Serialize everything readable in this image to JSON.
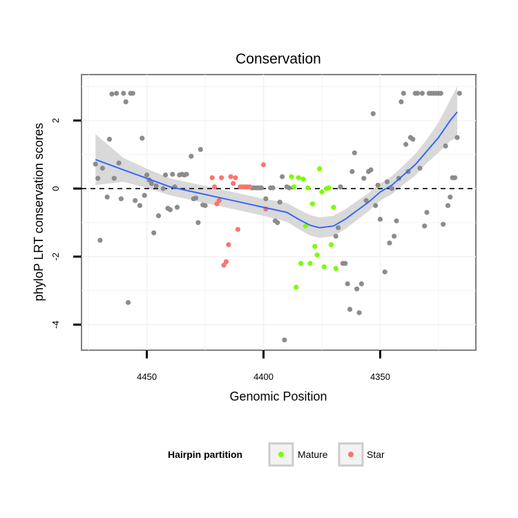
{
  "chart_data": {
    "type": "scatter",
    "title": "Conservation",
    "xlabel": "Genomic Position",
    "ylabel": "phyloP LRT conservation scores",
    "xlim": [
      4478,
      4309
    ],
    "ylim": [
      -4.75,
      3.35
    ],
    "x_reversed": true,
    "x_ticks": [
      4450,
      4400,
      4350
    ],
    "y_ticks": [
      -4,
      -2,
      0,
      2
    ],
    "grid": true,
    "reference_line": {
      "y": 0,
      "style": "dashed"
    },
    "legend": {
      "title": "Hairpin partition",
      "placement": "bottom",
      "entries": [
        {
          "label": "Mature",
          "color": "#7cfc00"
        },
        {
          "label": "Star",
          "color": "#f8766d"
        }
      ]
    },
    "colors": {
      "other": "#8c8c8c",
      "mature": "#7cfc00",
      "star": "#f8766d",
      "smooth": "#3366ff",
      "ribbon": "#cccccc"
    },
    "series": [
      {
        "category": "Other",
        "points": [
          [
            4472,
            0.72
          ],
          [
            4471,
            0.3
          ],
          [
            4470,
            -1.52
          ],
          [
            4469,
            0.6
          ],
          [
            4467,
            -0.25
          ],
          [
            4466,
            1.45
          ],
          [
            4465,
            2.78
          ],
          [
            4464,
            0.3
          ],
          [
            4463,
            2.8
          ],
          [
            4462,
            0.75
          ],
          [
            4461,
            -0.3
          ],
          [
            4460,
            2.8
          ],
          [
            4459,
            2.55
          ],
          [
            4458,
            -3.35
          ],
          [
            4457,
            2.8
          ],
          [
            4456,
            2.8
          ],
          [
            4455,
            -0.35
          ],
          [
            4453,
            -0.5
          ],
          [
            4452,
            1.48
          ],
          [
            4451,
            -0.2
          ],
          [
            4450,
            0.4
          ],
          [
            4449,
            0.25
          ],
          [
            4448,
            0.15
          ],
          [
            4447,
            -1.3
          ],
          [
            4446,
            0.08
          ],
          [
            4445,
            -0.8
          ],
          [
            4443,
            0.0
          ],
          [
            4442,
            0.4
          ],
          [
            4441,
            -0.58
          ],
          [
            4440,
            -0.62
          ],
          [
            4439,
            0.42
          ],
          [
            4438,
            0.05
          ],
          [
            4437,
            -0.55
          ],
          [
            4436,
            0.4
          ],
          [
            4435,
            0.42
          ],
          [
            4434,
            0.4
          ],
          [
            4433,
            0.42
          ],
          [
            4431,
            0.95
          ],
          [
            4430,
            -0.3
          ],
          [
            4429,
            -0.28
          ],
          [
            4428,
            -1.0
          ],
          [
            4427,
            1.15
          ],
          [
            4426,
            -0.48
          ],
          [
            4425,
            -0.5
          ],
          [
            4405,
            0.02
          ],
          [
            4404,
            0.02
          ],
          [
            4403,
            0.02
          ],
          [
            4402,
            0.02
          ],
          [
            4401,
            0.02
          ],
          [
            4399,
            -0.3
          ],
          [
            4397,
            0.02
          ],
          [
            4396,
            0.02
          ],
          [
            4395,
            -0.95
          ],
          [
            4394,
            -1.0
          ],
          [
            4393,
            -0.4
          ],
          [
            4392,
            0.35
          ],
          [
            4391,
            -4.45
          ],
          [
            4390,
            0.05
          ],
          [
            4389,
            0.02
          ],
          [
            4369,
            -1.4
          ],
          [
            4368,
            -1.15
          ],
          [
            4367,
            0.05
          ],
          [
            4366,
            -2.2
          ],
          [
            4365,
            -2.2
          ],
          [
            4364,
            -2.8
          ],
          [
            4363,
            -3.55
          ],
          [
            4362,
            0.5
          ],
          [
            4361,
            1.05
          ],
          [
            4360,
            -2.95
          ],
          [
            4359,
            -3.65
          ],
          [
            4358,
            -2.8
          ],
          [
            4357,
            0.3
          ],
          [
            4356,
            -0.35
          ],
          [
            4355,
            0.5
          ],
          [
            4354,
            0.55
          ],
          [
            4353,
            2.2
          ],
          [
            4352,
            -0.5
          ],
          [
            4351,
            0.1
          ],
          [
            4350,
            -0.9
          ],
          [
            4348,
            -2.45
          ],
          [
            4347,
            0.2
          ],
          [
            4346,
            -1.6
          ],
          [
            4345,
            0.0
          ],
          [
            4344,
            -1.4
          ],
          [
            4343,
            -0.95
          ],
          [
            4342,
            0.3
          ],
          [
            4341,
            2.55
          ],
          [
            4340,
            2.8
          ],
          [
            4339,
            1.3
          ],
          [
            4338,
            0.5
          ],
          [
            4337,
            1.5
          ],
          [
            4336,
            1.45
          ],
          [
            4335,
            2.8
          ],
          [
            4334,
            2.8
          ],
          [
            4333,
            0.6
          ],
          [
            4332,
            2.8
          ],
          [
            4331,
            -1.1
          ],
          [
            4330,
            -0.7
          ],
          [
            4329,
            2.8
          ],
          [
            4328,
            2.8
          ],
          [
            4327,
            2.8
          ],
          [
            4326,
            2.8
          ],
          [
            4325,
            2.8
          ],
          [
            4324,
            2.8
          ],
          [
            4323,
            -1.05
          ],
          [
            4322,
            1.25
          ],
          [
            4321,
            -0.5
          ],
          [
            4320,
            -0.25
          ],
          [
            4319,
            0.32
          ],
          [
            4318,
            0.32
          ],
          [
            4317,
            1.5
          ],
          [
            4316,
            2.8
          ]
        ]
      },
      {
        "category": "Star",
        "points": [
          [
            4422,
            0.32
          ],
          [
            4421,
            0.05
          ],
          [
            4420,
            -0.45
          ],
          [
            4419,
            -0.35
          ],
          [
            4418,
            0.32
          ],
          [
            4417,
            -2.25
          ],
          [
            4416,
            -2.15
          ],
          [
            4415,
            -1.65
          ],
          [
            4414,
            0.35
          ],
          [
            4413,
            0.15
          ],
          [
            4412,
            0.32
          ],
          [
            4411,
            -1.2
          ],
          [
            4410,
            0.05
          ],
          [
            4409,
            0.05
          ],
          [
            4408,
            0.05
          ],
          [
            4407,
            0.05
          ],
          [
            4406,
            0.05
          ],
          [
            4400,
            0.7
          ],
          [
            4399,
            -0.6
          ]
        ]
      },
      {
        "category": "Mature",
        "points": [
          [
            4388,
            0.35
          ],
          [
            4387,
            0.05
          ],
          [
            4386,
            -2.9
          ],
          [
            4385,
            0.32
          ],
          [
            4384,
            -2.2
          ],
          [
            4383,
            0.28
          ],
          [
            4382,
            -1.1
          ],
          [
            4381,
            0.02
          ],
          [
            4380,
            -2.2
          ],
          [
            4379,
            -0.45
          ],
          [
            4378,
            -1.7
          ],
          [
            4377,
            -1.95
          ],
          [
            4376,
            0.58
          ],
          [
            4375,
            -0.1
          ],
          [
            4374,
            -2.3
          ],
          [
            4373,
            0.0
          ],
          [
            4372,
            0.02
          ],
          [
            4371,
            -1.65
          ],
          [
            4370,
            -0.55
          ],
          [
            4369,
            -2.35
          ]
        ]
      }
    ],
    "smooth_curve": [
      [
        4472,
        0.85
      ],
      [
        4460,
        0.55
      ],
      [
        4450,
        0.3
      ],
      [
        4440,
        0.05
      ],
      [
        4430,
        -0.1
      ],
      [
        4420,
        -0.25
      ],
      [
        4410,
        -0.4
      ],
      [
        4400,
        -0.55
      ],
      [
        4390,
        -0.7
      ],
      [
        4385,
        -0.9
      ],
      [
        4380,
        -1.08
      ],
      [
        4376,
        -1.15
      ],
      [
        4370,
        -1.1
      ],
      [
        4365,
        -0.9
      ],
      [
        4360,
        -0.65
      ],
      [
        4355,
        -0.4
      ],
      [
        4350,
        -0.1
      ],
      [
        4345,
        0.1
      ],
      [
        4340,
        0.4
      ],
      [
        4335,
        0.7
      ],
      [
        4330,
        1.1
      ],
      [
        4325,
        1.5
      ],
      [
        4320,
        2.0
      ],
      [
        4317,
        2.25
      ]
    ],
    "ribbon_halfwidth": [
      [
        4472,
        0.75
      ],
      [
        4465,
        0.4
      ],
      [
        4455,
        0.3
      ],
      [
        4440,
        0.25
      ],
      [
        4420,
        0.25
      ],
      [
        4400,
        0.25
      ],
      [
        4390,
        0.28
      ],
      [
        4380,
        0.3
      ],
      [
        4370,
        0.3
      ],
      [
        4360,
        0.28
      ],
      [
        4350,
        0.25
      ],
      [
        4340,
        0.28
      ],
      [
        4330,
        0.35
      ],
      [
        4322,
        0.5
      ],
      [
        4317,
        0.75
      ]
    ]
  }
}
